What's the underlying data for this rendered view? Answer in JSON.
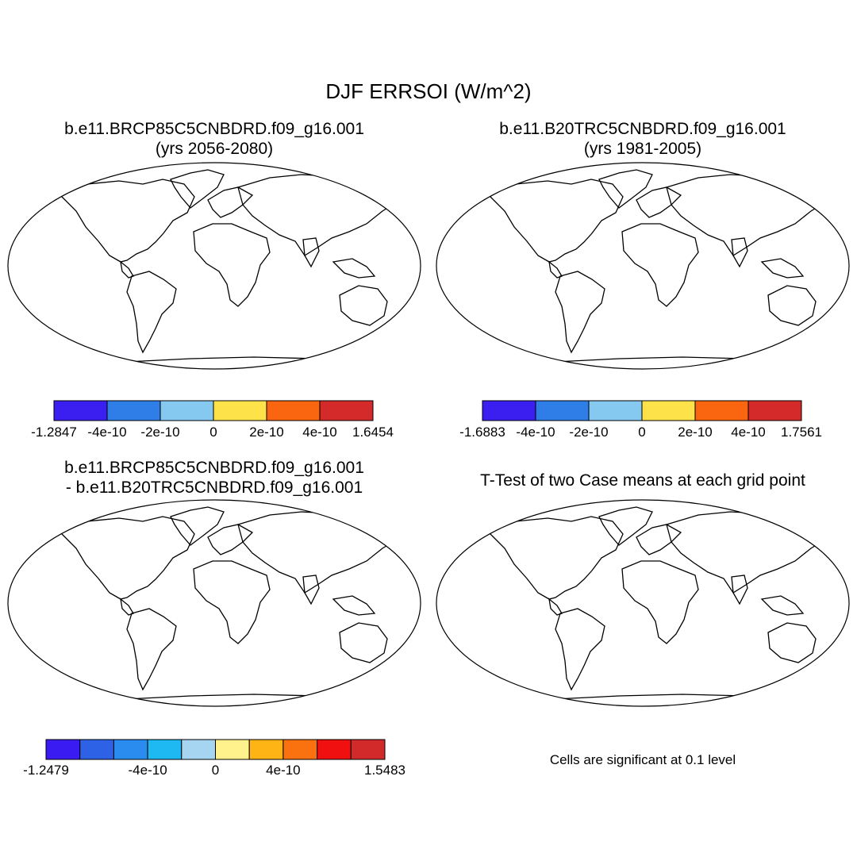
{
  "figure": {
    "title": "DJF ERRSOI (W/m^2)",
    "note": "Cells are significant at 0.1 level"
  },
  "panels": [
    {
      "id": "case1",
      "title_line1": "b.e11.BRCP85C5CNBDRD.f09_g16.001",
      "title_line2": "(yrs 2056-2080)",
      "colorbar": {
        "colors": [
          "#3b1ef0",
          "#2f7ee8",
          "#86c9f0",
          "#fee24a",
          "#f9660f",
          "#d42a2a"
        ],
        "labels": [
          "-1.2847",
          "-4e-10",
          "-2e-10",
          "0",
          "2e-10",
          "4e-10",
          "1.6454"
        ]
      }
    },
    {
      "id": "case2",
      "title_line1": "b.e11.B20TRC5CNBDRD.f09_g16.001",
      "title_line2": "(yrs 1981-2005)",
      "colorbar": {
        "colors": [
          "#3b1ef0",
          "#2f7ee8",
          "#86c9f0",
          "#fee24a",
          "#f9660f",
          "#d42a2a"
        ],
        "labels": [
          "-1.6883",
          "-4e-10",
          "-2e-10",
          "0",
          "2e-10",
          "4e-10",
          "1.7561"
        ]
      }
    },
    {
      "id": "diff",
      "title_line1": "b.e11.BRCP85C5CNBDRD.f09_g16.001",
      "title_line2": "- b.e11.B20TRC5CNBDRD.f09_g16.001",
      "colorbar": {
        "colors": [
          "#3a1cf2",
          "#2d62e6",
          "#2b8cef",
          "#1eb9f2",
          "#a6d5f2",
          "#fff28c",
          "#fdb414",
          "#f9720f",
          "#f01010",
          "#d22a2a"
        ],
        "labels": [
          "-1.2479",
          "-4e-10",
          "0",
          "4e-10",
          "1.5483"
        ],
        "label_slots": [
          0,
          3,
          5,
          7,
          10
        ]
      }
    },
    {
      "id": "ttest",
      "title_line1": "T-Test of two Case means at each grid point"
    }
  ],
  "colors": {
    "significant": "#f40000",
    "antarctica_case": "#f9660f",
    "antarctica_diff": "#fff28c"
  }
}
